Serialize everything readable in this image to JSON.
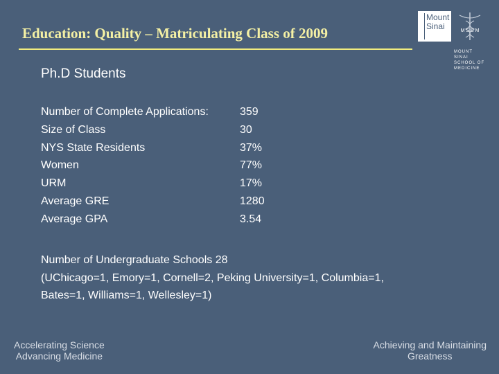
{
  "title": "Education: Quality – Matriculating Class of 2009",
  "logo": {
    "line1": "Mount",
    "line2": "Sinai",
    "seal_text": "M S S M",
    "sub1": "MOUNT SINAI",
    "sub2": "SCHOOL OF",
    "sub3": "MEDICINE"
  },
  "heading": "Ph.D Students",
  "stats": [
    {
      "label": "Number of Complete Applications:",
      "value": "359"
    },
    {
      "label": "Size of Class",
      "value": "30"
    },
    {
      "label": "NYS State Residents",
      "value": "37%"
    },
    {
      "label": "Women",
      "value": "77%"
    },
    {
      "label": "URM",
      "value": "17%"
    },
    {
      "label": "Average GRE",
      "value": "1280"
    },
    {
      "label": "Average GPA",
      "value": "3.54"
    }
  ],
  "schools": {
    "line1": "Number of Undergraduate Schools  28",
    "line2": "(UChicago=1, Emory=1, Cornell=2, Peking University=1, Columbia=1,",
    "line3": "Bates=1, Williams=1, Wellesley=1)"
  },
  "footer": {
    "left_line1": "Accelerating Science",
    "left_line2": "Advancing Medicine",
    "right_line1": "Achieving and Maintaining",
    "right_line2": "Greatness"
  },
  "colors": {
    "background": "#4a5f79",
    "title": "#f4f0a4",
    "rule": "#f1ec7e"
  }
}
